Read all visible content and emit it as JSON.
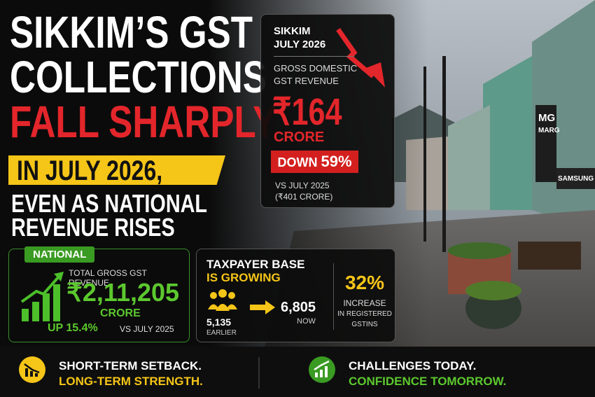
{
  "headline": {
    "lines": [
      "SIKKIM’S GST",
      "COLLECTIONS",
      "FALL SHARPLY"
    ],
    "highlight": "IN JULY 2026,",
    "sub_lines": [
      "EVEN AS NATIONAL",
      "REVENUE RISES"
    ]
  },
  "sikkim_card": {
    "state": "SIKKIM",
    "period": "JULY 2026",
    "metric_lines": [
      "GROSS DOMESTIC",
      "GST REVENUE"
    ],
    "value": "₹164",
    "unit": "CRORE",
    "change_prefix": "DOWN",
    "change": "59%",
    "comparison": "VS JULY 2025",
    "previous": "(₹401 CRORE)"
  },
  "national_card": {
    "badge": "NATIONAL",
    "metric": "TOTAL GROSS GST REVENUE",
    "value": "₹2,11,205",
    "unit": "CRORE",
    "change": "UP 15.4%",
    "comparison": "VS JULY 2025"
  },
  "taxpayer_card": {
    "title": "TAXPAYER BASE",
    "subtitle": "IS GROWING",
    "earlier_value": "5,135",
    "earlier_label": "EARLIER",
    "now_value": "6,805",
    "now_label": "NOW",
    "increase": "32%",
    "increase_lines": [
      "INCREASE",
      "IN REGISTERED",
      "GSTINS"
    ]
  },
  "footer": {
    "left_lines": [
      "SHORT-TERM SETBACK.",
      "LONG-TERM STRENGTH."
    ],
    "right_lines": [
      "CHALLENGES TODAY.",
      "CONFIDENCE TOMORROW."
    ]
  },
  "photo": {
    "signs": [
      "MG",
      "MARG",
      "SAMSUNG"
    ]
  }
}
